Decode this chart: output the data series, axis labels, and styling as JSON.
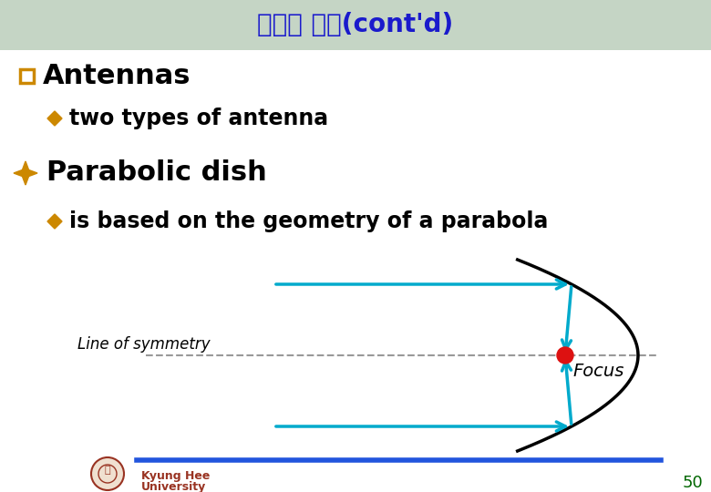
{
  "title": "비유도 매체(cont'd)",
  "title_color": "#1a1acc",
  "title_bg_color": "#c5d5c5",
  "bg_color": "#ffffff",
  "bullet_square_outline": "#cc8800",
  "bullet_gold": "#cc8800",
  "text_main": "Antennas",
  "text_sub1": "two types of antenna",
  "text_heading2": "Parabolic dish",
  "text_sub2": "is based on the geometry of a parabola",
  "diagram_line_color": "#000000",
  "diagram_arrow_color": "#00aacc",
  "diagram_focus_color": "#dd1111",
  "diagram_dashed_color": "#999999",
  "diagram_focus_label": "Focus",
  "diagram_symmetry_label": "Line of symmetry",
  "footer_line_color": "#2255dd",
  "footer_text_color": "#993322",
  "footer_number_color": "#006600",
  "footer_number": "50",
  "font_title_size": 20,
  "font_main_size": 22,
  "font_sub_size": 17,
  "font_heading2_size": 22
}
